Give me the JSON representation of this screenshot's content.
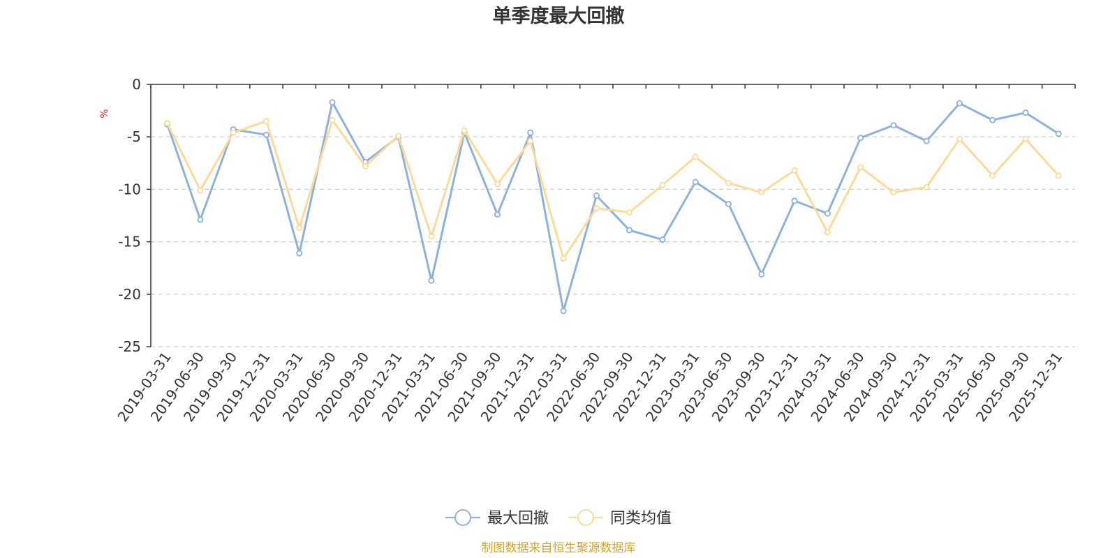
{
  "chart_data": {
    "type": "line",
    "title": "单季度最大回撤",
    "ylabel": "%",
    "ylim": [
      -25,
      0
    ],
    "yticks": [
      0,
      -5,
      -10,
      -15,
      -20,
      -25
    ],
    "grid": true,
    "legend_position": "bottom",
    "categories": [
      "2019-03-31",
      "2019-06-30",
      "2019-09-30",
      "2019-12-31",
      "2020-03-31",
      "2020-06-30",
      "2020-09-30",
      "2020-12-31",
      "2021-03-31",
      "2021-06-30",
      "2021-09-30",
      "2021-12-31",
      "2022-03-31",
      "2022-06-30",
      "2022-09-30",
      "2022-12-31",
      "2023-03-31",
      "2023-06-30",
      "2023-09-30",
      "2023-12-31",
      "2024-03-31",
      "2024-06-30",
      "2024-09-30",
      "2024-12-31",
      "2025-03-31",
      "2025-06-30",
      "2025-09-30",
      "2025-12-31"
    ],
    "series": [
      {
        "name": "最大回撤",
        "color": "#8eb0dc",
        "values": [
          -3.8,
          -12.9,
          -4.3,
          -4.8,
          -16.1,
          -1.7,
          -7.4,
          -5.0,
          -18.7,
          -4.6,
          -12.4,
          -4.6,
          -21.6,
          -10.6,
          -13.9,
          -14.8,
          -9.3,
          -11.4,
          -18.1,
          -11.1,
          -12.3,
          -5.1,
          -3.9,
          -5.4,
          -1.8,
          -3.4,
          -2.7,
          -4.7
        ]
      },
      {
        "name": "同类均值",
        "color": "#fdd99a",
        "values": [
          -3.7,
          -10.1,
          -4.6,
          -3.5,
          -13.7,
          -3.4,
          -7.8,
          -4.9,
          -14.5,
          -4.4,
          -9.5,
          -5.4,
          -16.6,
          -11.8,
          -12.2,
          -9.6,
          -6.9,
          -9.4,
          -10.3,
          -8.2,
          -14.1,
          -7.9,
          -10.3,
          -9.8,
          -5.2,
          -8.7,
          -5.2,
          -8.7
        ]
      }
    ]
  },
  "source": {
    "text": "制图数据来自恒生聚源数据库",
    "color": "#d4a52f"
  },
  "colors": {
    "axis": "#333333",
    "grid": "#cccccc",
    "unit": "#e02020"
  }
}
